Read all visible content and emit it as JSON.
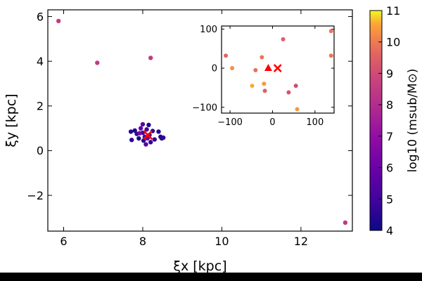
{
  "chart_data": {
    "type": "scatter",
    "main": {
      "xlabel": "ξx [kpc]",
      "ylabel": "ξy [kpc]",
      "xlim": [
        5.6,
        13.3
      ],
      "ylim": [
        -3.6,
        6.3
      ],
      "xticks": [
        6,
        8,
        10,
        12
      ],
      "yticks": [
        -2,
        0,
        2,
        4,
        6
      ],
      "points": [
        {
          "x": 5.87,
          "y": 5.8,
          "c": 8.5
        },
        {
          "x": 6.85,
          "y": 3.93,
          "c": 8.5
        },
        {
          "x": 8.2,
          "y": 4.15,
          "c": 8.5
        },
        {
          "x": 13.12,
          "y": -3.22,
          "c": 8.4
        },
        {
          "x": 7.8,
          "y": 0.9,
          "c": 4.3
        },
        {
          "x": 7.85,
          "y": 0.75,
          "c": 4.6
        },
        {
          "x": 7.9,
          "y": 0.55,
          "c": 4.2
        },
        {
          "x": 7.95,
          "y": 1.0,
          "c": 5.6
        },
        {
          "x": 8.0,
          "y": 0.8,
          "c": 4.8
        },
        {
          "x": 8.0,
          "y": 1.18,
          "c": 5.4
        },
        {
          "x": 8.02,
          "y": 0.45,
          "c": 4.5
        },
        {
          "x": 8.05,
          "y": 0.62,
          "c": 5.2
        },
        {
          "x": 8.08,
          "y": 0.28,
          "c": 5.6
        },
        {
          "x": 8.1,
          "y": 0.95,
          "c": 4.9
        },
        {
          "x": 8.15,
          "y": 1.15,
          "c": 4.4
        },
        {
          "x": 8.17,
          "y": 0.7,
          "c": 5.0
        },
        {
          "x": 8.2,
          "y": 0.38,
          "c": 4.6
        },
        {
          "x": 8.25,
          "y": 0.88,
          "c": 4.3
        },
        {
          "x": 8.3,
          "y": 0.5,
          "c": 4.6
        },
        {
          "x": 8.4,
          "y": 0.85,
          "c": 4.5
        },
        {
          "x": 8.45,
          "y": 0.62,
          "c": 4.4
        },
        {
          "x": 8.48,
          "y": 0.55,
          "c": 4.5
        },
        {
          "x": 8.52,
          "y": 0.58,
          "c": 4.7
        },
        {
          "x": 7.7,
          "y": 0.85,
          "c": 4.5
        },
        {
          "x": 7.72,
          "y": 0.48,
          "c": 4.6
        },
        {
          "x": 7.92,
          "y": 0.78,
          "c": 6.3
        },
        {
          "x": 8.12,
          "y": 0.55,
          "c": 5.8
        }
      ],
      "markers": [
        {
          "x": 8.13,
          "y": 0.7,
          "shape": "x",
          "color": "#ff0000"
        }
      ]
    },
    "inset": {
      "xlim": [
        -120,
        145
      ],
      "ylim": [
        -115,
        108
      ],
      "xticks": [
        -100,
        0,
        100
      ],
      "yticks": [
        -100,
        0,
        100
      ],
      "points": [
        {
          "x": -110,
          "y": 32,
          "c": 9.6
        },
        {
          "x": -95,
          "y": 0,
          "c": 10.3
        },
        {
          "x": -48,
          "y": -45,
          "c": 10.6
        },
        {
          "x": -40,
          "y": -5,
          "c": 9.8
        },
        {
          "x": -25,
          "y": 28,
          "c": 9.9
        },
        {
          "x": -20,
          "y": -40,
          "c": 10.4
        },
        {
          "x": -18,
          "y": -58,
          "c": 9.5
        },
        {
          "x": 25,
          "y": 74,
          "c": 9.5
        },
        {
          "x": 38,
          "y": -62,
          "c": 9.2
        },
        {
          "x": 55,
          "y": -45,
          "c": 9.0
        },
        {
          "x": 58,
          "y": -105,
          "c": 10.4
        },
        {
          "x": 138,
          "y": 95,
          "c": 9.9
        },
        {
          "x": 138,
          "y": 32,
          "c": 9.9
        }
      ],
      "markers": [
        {
          "x": -10,
          "y": 0,
          "shape": "triangle",
          "color": "#ff0000"
        },
        {
          "x": 12,
          "y": 0,
          "shape": "x",
          "color": "#ff0000"
        }
      ]
    },
    "colorbar": {
      "label": "log10 (msub/M⊙)",
      "range": [
        4,
        11
      ],
      "ticks": [
        4,
        5,
        6,
        7,
        8,
        9,
        10,
        11
      ],
      "colormap": "plasma"
    }
  }
}
